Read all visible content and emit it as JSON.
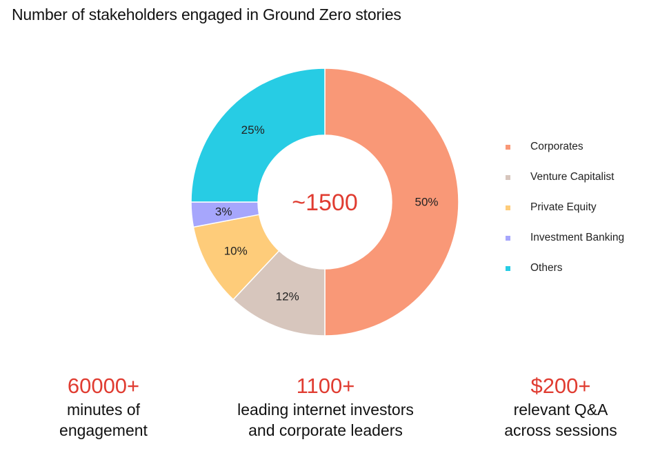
{
  "title": "Number of stakeholders engaged in Ground Zero stories",
  "center_label": "~1500",
  "colors": {
    "center_text": "#e03c31",
    "stat_value": "#e03c31"
  },
  "chart_data": {
    "type": "pie",
    "title": "Number of stakeholders engaged in Ground Zero stories",
    "categories": [
      "Corporates",
      "Venture Capitalist",
      "Private Equity",
      "Investment Banking",
      "Others"
    ],
    "values": [
      50,
      12,
      10,
      3,
      25
    ],
    "labels": [
      "50%",
      "12%",
      "10%",
      "3%",
      "25%"
    ],
    "colors": [
      "#f99877",
      "#d7c6bd",
      "#fecc7a",
      "#a6a6fc",
      "#27cce4"
    ],
    "center_label": "~1500",
    "legend": "right",
    "donut": true
  },
  "stats": [
    {
      "value": "60000+",
      "lines": [
        "minutes of",
        "engagement"
      ]
    },
    {
      "value": "1100+",
      "lines": [
        "leading internet investors",
        "and corporate leaders"
      ]
    },
    {
      "value": "$200+",
      "lines": [
        "relevant Q&A",
        "across sessions"
      ]
    }
  ]
}
